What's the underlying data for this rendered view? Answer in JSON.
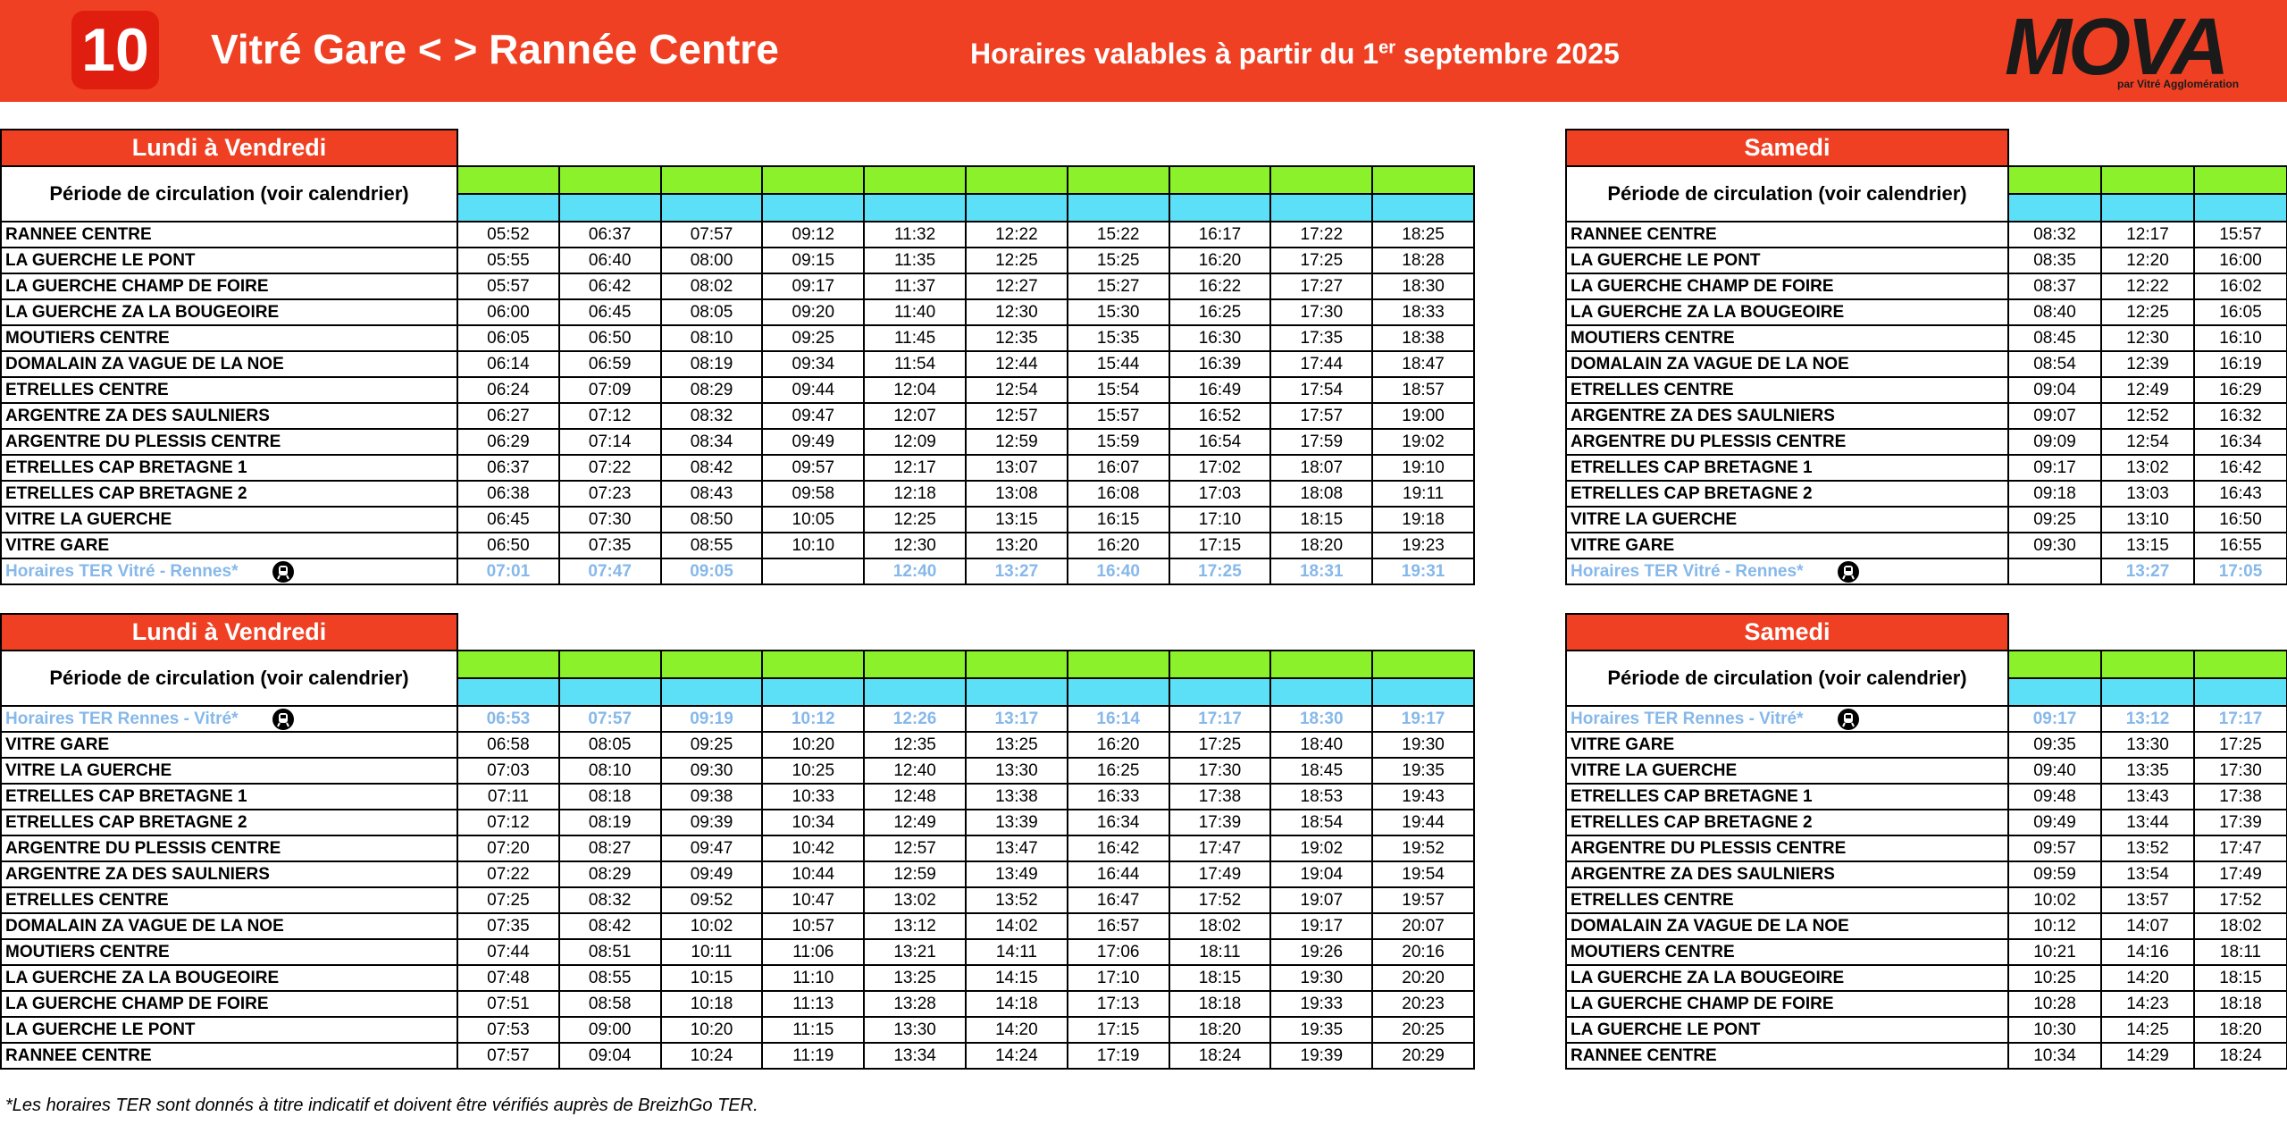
{
  "header": {
    "route_number": "10",
    "title": "Vitré Gare < > Rannée Centre",
    "validity": "Horaires valables à partir du 1",
    "validity_sup": "er",
    "validity_end": "septembre 2025",
    "logo": "MOVA",
    "logo_sub": "par Vitré Agglomération"
  },
  "tables": [
    {
      "title": "Lundi à Vendredi",
      "period_label": "Période de circulation (voir calendrier)",
      "rows": [
        {
          "stop": "RANNEE CENTRE",
          "times": [
            "05:52",
            "06:37",
            "07:57",
            "09:12",
            "11:32",
            "12:22",
            "15:22",
            "16:17",
            "17:22",
            "18:25"
          ]
        },
        {
          "stop": "LA GUERCHE LE PONT",
          "times": [
            "05:55",
            "06:40",
            "08:00",
            "09:15",
            "11:35",
            "12:25",
            "15:25",
            "16:20",
            "17:25",
            "18:28"
          ]
        },
        {
          "stop": "LA GUERCHE CHAMP DE FOIRE",
          "times": [
            "05:57",
            "06:42",
            "08:02",
            "09:17",
            "11:37",
            "12:27",
            "15:27",
            "16:22",
            "17:27",
            "18:30"
          ]
        },
        {
          "stop": "LA GUERCHE ZA LA BOUGEOIRE",
          "times": [
            "06:00",
            "06:45",
            "08:05",
            "09:20",
            "11:40",
            "12:30",
            "15:30",
            "16:25",
            "17:30",
            "18:33"
          ]
        },
        {
          "stop": "MOUTIERS CENTRE",
          "times": [
            "06:05",
            "06:50",
            "08:10",
            "09:25",
            "11:45",
            "12:35",
            "15:35",
            "16:30",
            "17:35",
            "18:38"
          ]
        },
        {
          "stop": "DOMALAIN ZA VAGUE DE LA NOE",
          "times": [
            "06:14",
            "06:59",
            "08:19",
            "09:34",
            "11:54",
            "12:44",
            "15:44",
            "16:39",
            "17:44",
            "18:47"
          ]
        },
        {
          "stop": "ETRELLES CENTRE",
          "times": [
            "06:24",
            "07:09",
            "08:29",
            "09:44",
            "12:04",
            "12:54",
            "15:54",
            "16:49",
            "17:54",
            "18:57"
          ]
        },
        {
          "stop": "ARGENTRE ZA DES SAULNIERS",
          "times": [
            "06:27",
            "07:12",
            "08:32",
            "09:47",
            "12:07",
            "12:57",
            "15:57",
            "16:52",
            "17:57",
            "19:00"
          ]
        },
        {
          "stop": "ARGENTRE DU PLESSIS CENTRE",
          "times": [
            "06:29",
            "07:14",
            "08:34",
            "09:49",
            "12:09",
            "12:59",
            "15:59",
            "16:54",
            "17:59",
            "19:02"
          ]
        },
        {
          "stop": "ETRELLES CAP BRETAGNE 1",
          "times": [
            "06:37",
            "07:22",
            "08:42",
            "09:57",
            "12:17",
            "13:07",
            "16:07",
            "17:02",
            "18:07",
            "19:10"
          ]
        },
        {
          "stop": "ETRELLES CAP BRETAGNE 2",
          "times": [
            "06:38",
            "07:23",
            "08:43",
            "09:58",
            "12:18",
            "13:08",
            "16:08",
            "17:03",
            "18:08",
            "19:11"
          ]
        },
        {
          "stop": "VITRE LA GUERCHE",
          "times": [
            "06:45",
            "07:30",
            "08:50",
            "10:05",
            "12:25",
            "13:15",
            "16:15",
            "17:10",
            "18:15",
            "19:18"
          ]
        },
        {
          "stop": "VITRE GARE",
          "times": [
            "06:50",
            "07:35",
            "08:55",
            "10:10",
            "12:30",
            "13:20",
            "16:20",
            "17:15",
            "18:20",
            "19:23"
          ]
        },
        {
          "stop": "Horaires TER Vitré - Rennes*",
          "ter": true,
          "times": [
            "07:01",
            "07:47",
            "09:05",
            null,
            "12:40",
            "13:27",
            "16:40",
            "17:25",
            "18:31",
            "19:31"
          ]
        }
      ]
    },
    {
      "title": "Samedi",
      "period_label": "Période de circulation (voir calendrier)",
      "rows": [
        {
          "stop": "RANNEE CENTRE",
          "times": [
            "08:32",
            "12:17",
            "15:57"
          ]
        },
        {
          "stop": "LA GUERCHE LE PONT",
          "times": [
            "08:35",
            "12:20",
            "16:00"
          ]
        },
        {
          "stop": "LA GUERCHE CHAMP DE FOIRE",
          "times": [
            "08:37",
            "12:22",
            "16:02"
          ]
        },
        {
          "stop": "LA GUERCHE ZA LA BOUGEOIRE",
          "times": [
            "08:40",
            "12:25",
            "16:05"
          ]
        },
        {
          "stop": "MOUTIERS CENTRE",
          "times": [
            "08:45",
            "12:30",
            "16:10"
          ]
        },
        {
          "stop": "DOMALAIN ZA VAGUE DE LA NOE",
          "times": [
            "08:54",
            "12:39",
            "16:19"
          ]
        },
        {
          "stop": "ETRELLES CENTRE",
          "times": [
            "09:04",
            "12:49",
            "16:29"
          ]
        },
        {
          "stop": "ARGENTRE ZA DES SAULNIERS",
          "times": [
            "09:07",
            "12:52",
            "16:32"
          ]
        },
        {
          "stop": "ARGENTRE DU PLESSIS CENTRE",
          "times": [
            "09:09",
            "12:54",
            "16:34"
          ]
        },
        {
          "stop": "ETRELLES CAP BRETAGNE 1",
          "times": [
            "09:17",
            "13:02",
            "16:42"
          ]
        },
        {
          "stop": "ETRELLES CAP BRETAGNE 2",
          "times": [
            "09:18",
            "13:03",
            "16:43"
          ]
        },
        {
          "stop": "VITRE LA GUERCHE",
          "times": [
            "09:25",
            "13:10",
            "16:50"
          ]
        },
        {
          "stop": "VITRE GARE",
          "times": [
            "09:30",
            "13:15",
            "16:55"
          ]
        },
        {
          "stop": "Horaires TER Vitré - Rennes*",
          "ter": true,
          "times": [
            null,
            "13:27",
            "17:05"
          ]
        }
      ]
    },
    {
      "title": "Lundi à Vendredi",
      "period_label": "Période de circulation (voir calendrier)",
      "rows": [
        {
          "stop": "Horaires TER Rennes - Vitré*",
          "ter": true,
          "times": [
            "06:53",
            "07:57",
            "09:19",
            "10:12",
            "12:26",
            "13:17",
            "16:14",
            "17:17",
            "18:30",
            "19:17"
          ]
        },
        {
          "stop": "VITRE GARE",
          "times": [
            "06:58",
            "08:05",
            "09:25",
            "10:20",
            "12:35",
            "13:25",
            "16:20",
            "17:25",
            "18:40",
            "19:30"
          ]
        },
        {
          "stop": "VITRE LA GUERCHE",
          "times": [
            "07:03",
            "08:10",
            "09:30",
            "10:25",
            "12:40",
            "13:30",
            "16:25",
            "17:30",
            "18:45",
            "19:35"
          ]
        },
        {
          "stop": "ETRELLES CAP BRETAGNE 1",
          "times": [
            "07:11",
            "08:18",
            "09:38",
            "10:33",
            "12:48",
            "13:38",
            "16:33",
            "17:38",
            "18:53",
            "19:43"
          ]
        },
        {
          "stop": "ETRELLES CAP BRETAGNE 2",
          "times": [
            "07:12",
            "08:19",
            "09:39",
            "10:34",
            "12:49",
            "13:39",
            "16:34",
            "17:39",
            "18:54",
            "19:44"
          ]
        },
        {
          "stop": "ARGENTRE DU PLESSIS CENTRE",
          "times": [
            "07:20",
            "08:27",
            "09:47",
            "10:42",
            "12:57",
            "13:47",
            "16:42",
            "17:47",
            "19:02",
            "19:52"
          ]
        },
        {
          "stop": "ARGENTRE ZA DES SAULNIERS",
          "times": [
            "07:22",
            "08:29",
            "09:49",
            "10:44",
            "12:59",
            "13:49",
            "16:44",
            "17:49",
            "19:04",
            "19:54"
          ]
        },
        {
          "stop": "ETRELLES CENTRE",
          "times": [
            "07:25",
            "08:32",
            "09:52",
            "10:47",
            "13:02",
            "13:52",
            "16:47",
            "17:52",
            "19:07",
            "19:57"
          ]
        },
        {
          "stop": "DOMALAIN ZA VAGUE DE LA NOE",
          "times": [
            "07:35",
            "08:42",
            "10:02",
            "10:57",
            "13:12",
            "14:02",
            "16:57",
            "18:02",
            "19:17",
            "20:07"
          ]
        },
        {
          "stop": "MOUTIERS CENTRE",
          "times": [
            "07:44",
            "08:51",
            "10:11",
            "11:06",
            "13:21",
            "14:11",
            "17:06",
            "18:11",
            "19:26",
            "20:16"
          ]
        },
        {
          "stop": "LA GUERCHE ZA LA BOUGEOIRE",
          "times": [
            "07:48",
            "08:55",
            "10:15",
            "11:10",
            "13:25",
            "14:15",
            "17:10",
            "18:15",
            "19:30",
            "20:20"
          ]
        },
        {
          "stop": "LA GUERCHE CHAMP DE FOIRE",
          "times": [
            "07:51",
            "08:58",
            "10:18",
            "11:13",
            "13:28",
            "14:18",
            "17:13",
            "18:18",
            "19:33",
            "20:23"
          ]
        },
        {
          "stop": "LA GUERCHE LE PONT",
          "times": [
            "07:53",
            "09:00",
            "10:20",
            "11:15",
            "13:30",
            "14:20",
            "17:15",
            "18:20",
            "19:35",
            "20:25"
          ]
        },
        {
          "stop": "RANNEE CENTRE",
          "times": [
            "07:57",
            "09:04",
            "10:24",
            "11:19",
            "13:34",
            "14:24",
            "17:19",
            "18:24",
            "19:39",
            "20:29"
          ]
        }
      ]
    },
    {
      "title": "Samedi",
      "period_label": "Période de circulation (voir calendrier)",
      "rows": [
        {
          "stop": "Horaires TER Rennes - Vitré*",
          "ter": true,
          "times": [
            "09:17",
            "13:12",
            "17:17"
          ]
        },
        {
          "stop": "VITRE GARE",
          "times": [
            "09:35",
            "13:30",
            "17:25"
          ]
        },
        {
          "stop": "VITRE LA GUERCHE",
          "times": [
            "09:40",
            "13:35",
            "17:30"
          ]
        },
        {
          "stop": "ETRELLES CAP BRETAGNE 1",
          "times": [
            "09:48",
            "13:43",
            "17:38"
          ]
        },
        {
          "stop": "ETRELLES CAP BRETAGNE 2",
          "times": [
            "09:49",
            "13:44",
            "17:39"
          ]
        },
        {
          "stop": "ARGENTRE DU PLESSIS CENTRE",
          "times": [
            "09:57",
            "13:52",
            "17:47"
          ]
        },
        {
          "stop": "ARGENTRE ZA DES SAULNIERS",
          "times": [
            "09:59",
            "13:54",
            "17:49"
          ]
        },
        {
          "stop": "ETRELLES CENTRE",
          "times": [
            "10:02",
            "13:57",
            "17:52"
          ]
        },
        {
          "stop": "DOMALAIN ZA VAGUE DE LA NOE",
          "times": [
            "10:12",
            "14:07",
            "18:02"
          ]
        },
        {
          "stop": "MOUTIERS CENTRE",
          "times": [
            "10:21",
            "14:16",
            "18:11"
          ]
        },
        {
          "stop": "LA GUERCHE ZA LA BOUGEOIRE",
          "times": [
            "10:25",
            "14:20",
            "18:15"
          ]
        },
        {
          "stop": "LA GUERCHE CHAMP DE FOIRE",
          "times": [
            "10:28",
            "14:23",
            "18:18"
          ]
        },
        {
          "stop": "LA GUERCHE LE PONT",
          "times": [
            "10:30",
            "14:25",
            "18:20"
          ]
        },
        {
          "stop": "RANNEE CENTRE",
          "times": [
            "10:34",
            "14:29",
            "18:24"
          ]
        }
      ]
    }
  ],
  "footnote": "*Les horaires TER sont donnés à titre indicatif et doivent être vérifiés auprès de BreizhGo TER."
}
